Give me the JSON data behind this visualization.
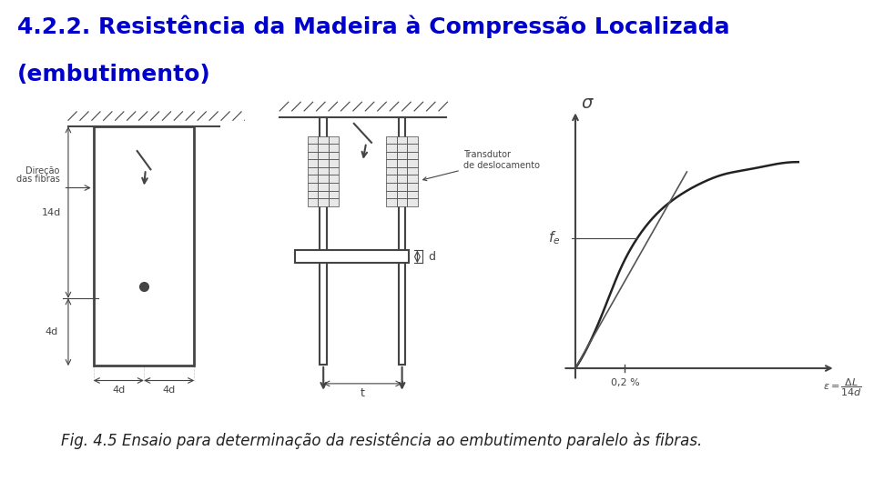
{
  "title_line1": "4.2.2. Resistência da Madeira à Compressão Localizada",
  "title_line2": "(embutimento)",
  "title_color": "#0000CC",
  "title_fontsize": 18,
  "caption": "Fig. 4.5 Ensaio para determinação da resistência ao embutimento paralelo às fibras.",
  "caption_fontsize": 12,
  "caption_color": "#222222",
  "bg_color": "#FFFFFF",
  "fig_width": 9.6,
  "fig_height": 5.4,
  "fig_dpi": 100,
  "lc": "#444444",
  "lw": 1.5
}
